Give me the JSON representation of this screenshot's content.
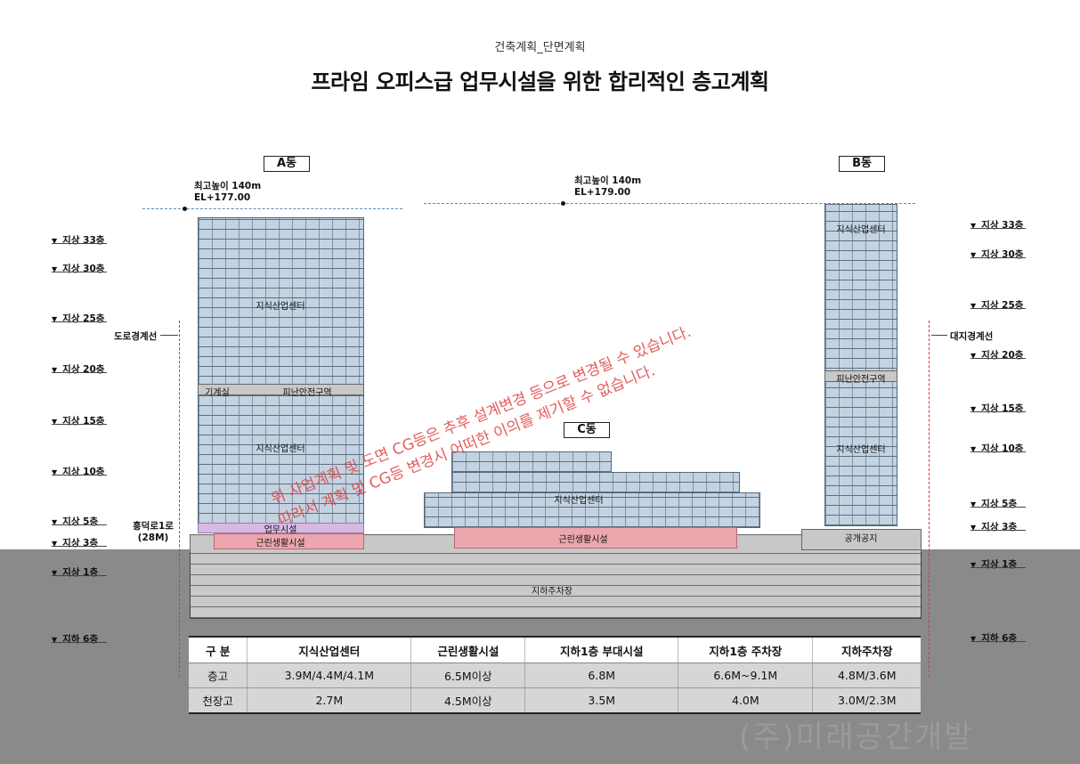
{
  "header": {
    "subtitle": "건축계획_단면계획",
    "title": "프라임 오피스급 업무시설을 위한 합리적인 층고계획"
  },
  "buildings": {
    "a": "A동",
    "b": "B동",
    "c": "C동"
  },
  "height_notes": {
    "a": {
      "line1": "최고높이 140m",
      "line2": "EL+177.00"
    },
    "b": {
      "line1": "최고높이 140m",
      "line2": "EL+179.00"
    }
  },
  "levels_left": [
    "지상 33층",
    "지상 30층",
    "지상 25층",
    "지상 20층",
    "지상 15층",
    "지상 10층",
    "지상 5층",
    "지상 3층",
    "지상 1층",
    "지하 6층"
  ],
  "levels_right": [
    "지상 33층",
    "지상 30층",
    "지상 25층",
    "지상 20층",
    "지상 15층",
    "지상 10층",
    "지상 5층",
    "지상 3층",
    "지상 1층",
    "지하 6층"
  ],
  "boundaries": {
    "left": "도로경계선",
    "right": "대지경계선"
  },
  "road": {
    "name": "흥덕로1로",
    "width": "(28M)"
  },
  "zones": {
    "a_upper": "지식산업센터",
    "a_mech": "기계실",
    "a_refuge": "피난안전구역",
    "a_middle": "지식산업센터",
    "a_business": "업무시설",
    "a_retail": "근린생활시설",
    "b_upper": "지식산업센터",
    "b_refuge": "피난안전구역",
    "b_lower": "지식산업센터",
    "b_open": "공개공지",
    "c_main": "지식산업센터",
    "c_retail": "근린생활시설",
    "parking": "지하주차장"
  },
  "watermark": {
    "line1": "위 사업계획 및 도면 CG등은 추후 설계변경 등으로 변경될 수 있습니다.",
    "line2": "따라서 계획 및 CG등 변경시 어떠한 이의를 제기할 수 없습니다."
  },
  "table": {
    "headers": [
      "구  분",
      "지식산업센터",
      "근린생활시설",
      "지하1층 부대시설",
      "지하1층 주차장",
      "지하주차장"
    ],
    "rows": [
      [
        "층고",
        "3.9M/4.4M/4.1M",
        "6.5M이상",
        "6.8M",
        "6.6M~9.1M",
        "4.8M/3.6M"
      ],
      [
        "천장고",
        "2.7M",
        "4.5M이상",
        "3.5M",
        "4.0M",
        "3.0M/2.3M"
      ]
    ]
  },
  "company": "(주)미래공간개발"
}
